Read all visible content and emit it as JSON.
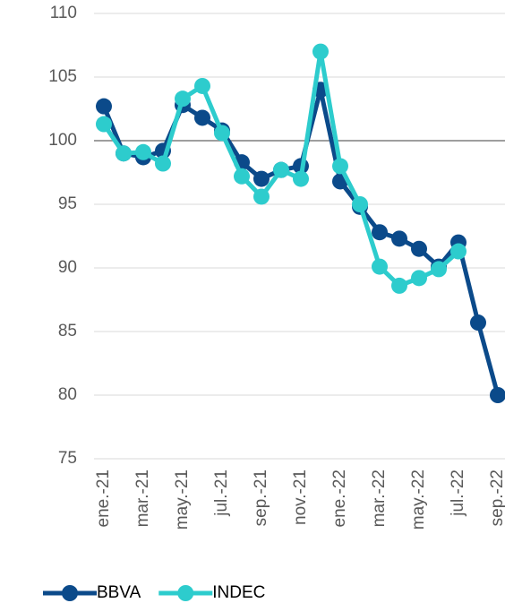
{
  "chart_data": {
    "type": "line",
    "categories": [
      "ene.-21",
      null,
      "mar.-21",
      null,
      "may.-21",
      null,
      "jul.-21",
      null,
      "sep.-21",
      null,
      "nov.-21",
      null,
      "ene.-22",
      null,
      "mar.-22",
      null,
      "may.-22",
      null,
      "jul.-22",
      null,
      "sep.-22"
    ],
    "series": [
      {
        "name": "BBVA",
        "color": "#0b4a8a",
        "values": [
          102.7,
          99.0,
          98.7,
          99.2,
          102.8,
          101.8,
          100.8,
          98.3,
          97.0,
          97.7,
          98.0,
          104.0,
          96.8,
          94.8,
          92.8,
          92.3,
          91.5,
          90.1,
          92.0,
          85.7,
          80.0
        ]
      },
      {
        "name": "INDEC",
        "color": "#2dcccd",
        "values": [
          101.3,
          99.0,
          99.1,
          98.2,
          103.3,
          104.3,
          100.6,
          97.2,
          95.6,
          97.7,
          97.0,
          107.0,
          98.0,
          95.0,
          90.1,
          88.6,
          89.2,
          89.9,
          91.3,
          null,
          null
        ]
      }
    ],
    "ylim": [
      75,
      110
    ],
    "yticks": [
      75,
      80,
      85,
      90,
      95,
      100,
      105,
      110
    ],
    "grid": true,
    "reference_line": 100,
    "legend": "bottom-left"
  }
}
